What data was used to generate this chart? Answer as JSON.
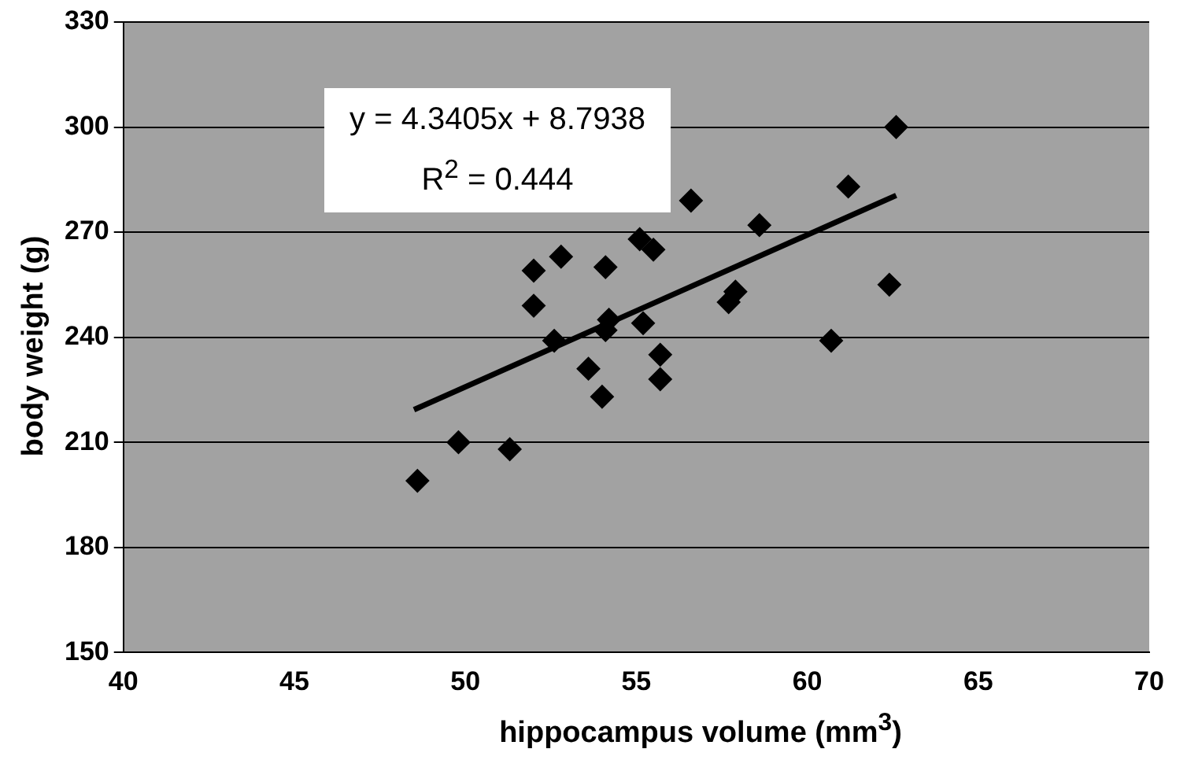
{
  "chart_data": {
    "type": "scatter",
    "xlabel": "hippocampus volume (mm$^{3}$)",
    "ylabel": "body weight (g)",
    "annotations": [
      "y = 4.3405x + 8.7938",
      "R$^{2}$ = 0.444"
    ],
    "series": [
      {
        "color": "#000000",
        "marker": "diamond",
        "x": [
          48.6,
          49.8,
          51.3,
          52.0,
          52.0,
          52.8,
          52.6,
          53.6,
          54.1,
          54.0,
          54.1,
          54.2,
          55.2,
          55.1,
          55.5,
          55.7,
          55.7,
          56.6,
          57.7,
          57.9,
          58.6,
          60.7,
          61.2,
          62.4,
          62.6
        ],
        "values": [
          199,
          210,
          208,
          259,
          249,
          263,
          239,
          231,
          260,
          223,
          242,
          245,
          244,
          268,
          265,
          235,
          228,
          279,
          250,
          253,
          272,
          239,
          283,
          255,
          300
        ]
      },
      {
        "type": "line",
        "color": "#000000",
        "marker": "none",
        "line_style": "solid",
        "x": [
          48.5,
          62.6
        ],
        "values": [
          219.3,
          280.5
        ]
      }
    ],
    "xlim": [
      40,
      70
    ],
    "xticks": [
      40,
      45,
      50,
      55,
      60,
      65,
      70
    ],
    "ylim": [
      150,
      330
    ],
    "yticks": [
      150,
      180,
      210,
      240,
      270,
      300,
      330
    ],
    "grid": "y",
    "legend": false
  }
}
